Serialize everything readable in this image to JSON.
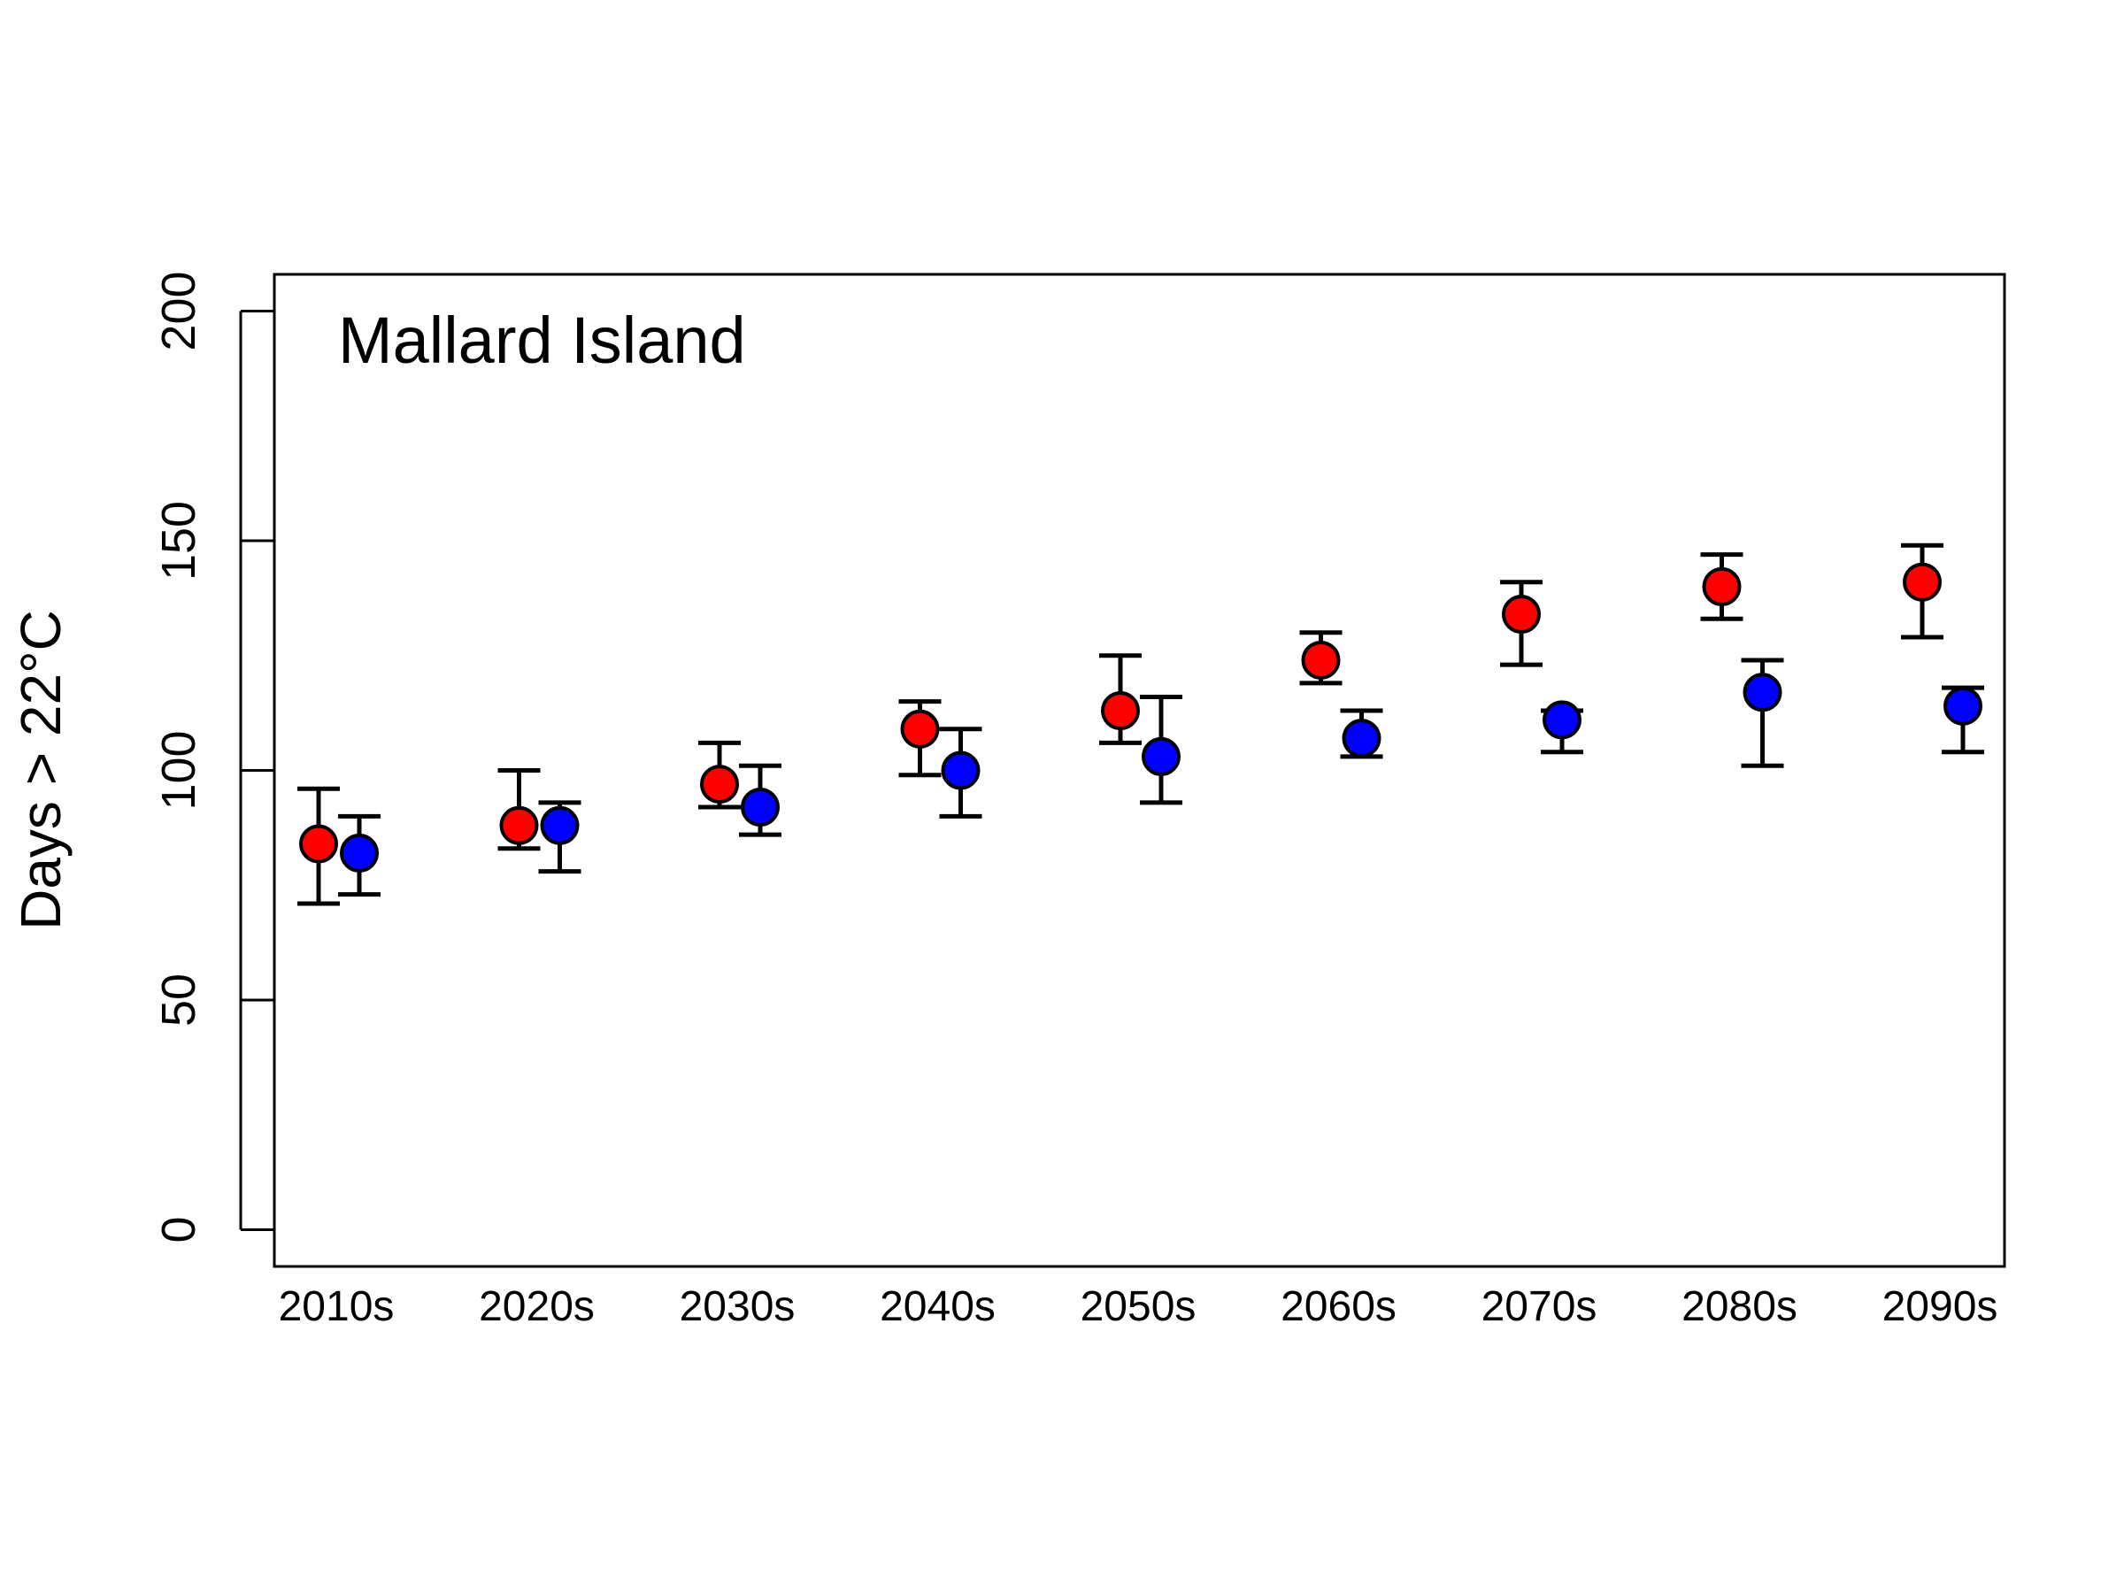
{
  "chart_data": {
    "type": "scatter",
    "annotation": "Mallard Island",
    "xlabel": "",
    "ylabel": "Days > 22°C",
    "categories": [
      "2010s",
      "2020s",
      "2030s",
      "2040s",
      "2050s",
      "2060s",
      "2070s",
      "2080s",
      "2090s"
    ],
    "ylim": [
      -8,
      208
    ],
    "yticks": [
      "0",
      "50",
      "100",
      "150",
      "200"
    ],
    "grid": false,
    "legend": "none",
    "series": [
      {
        "color": "#ff0000",
        "values": [
          84,
          88,
          97,
          109,
          113,
          124,
          134,
          140,
          141
        ],
        "lower": [
          71,
          83,
          92,
          99,
          106,
          119,
          123,
          133,
          129
        ],
        "upper": [
          96,
          100,
          106,
          115,
          125,
          130,
          141,
          147,
          149
        ]
      },
      {
        "color": "#0000ff",
        "values": [
          82,
          88,
          92,
          100,
          103,
          107,
          111,
          117,
          114
        ],
        "lower": [
          73,
          78,
          86,
          90,
          93,
          103,
          104,
          101,
          104
        ],
        "upper": [
          90,
          93,
          101,
          109,
          116,
          113,
          113,
          124,
          118
        ]
      }
    ]
  }
}
